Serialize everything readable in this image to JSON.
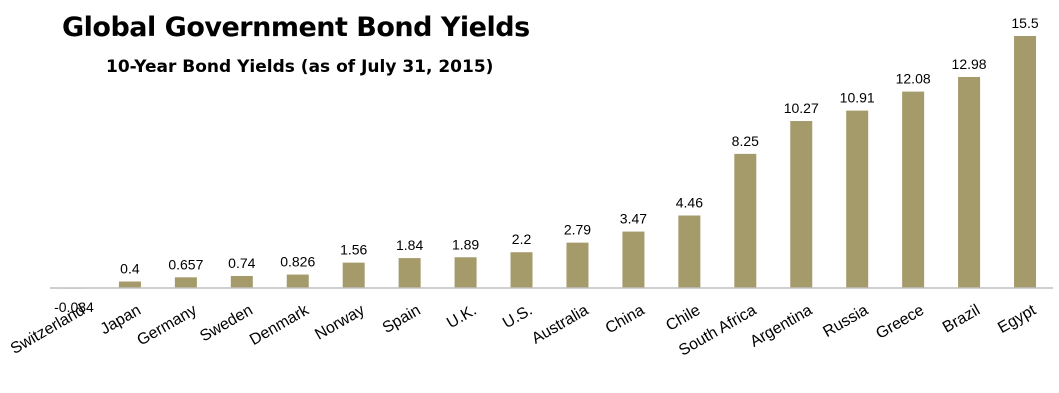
{
  "chart_data": {
    "type": "bar",
    "title": "Global Government Bond Yields",
    "subtitle": "10-Year Bond Yields (as of July 31, 2015)",
    "xlabel": "",
    "ylabel": "",
    "categories": [
      "Switzerland",
      "Japan",
      "Germany",
      "Sweden",
      "Denmark",
      "Norway",
      "Spain",
      "U.K.",
      "U.S.",
      "Australia",
      "China",
      "Chile",
      "South Africa",
      "Argentina",
      "Russia",
      "Greece",
      "Brazil",
      "Egypt"
    ],
    "values": [
      -0.034,
      0.4,
      0.657,
      0.74,
      0.826,
      1.56,
      1.84,
      1.89,
      2.2,
      2.79,
      3.47,
      4.46,
      8.25,
      10.27,
      10.91,
      12.08,
      12.98,
      15.5
    ],
    "value_labels": [
      "-0.034",
      "0.4",
      "0.657",
      "0.74",
      "0.826",
      "1.56",
      "1.84",
      "1.89",
      "2.2",
      "2.79",
      "3.47",
      "4.46",
      "8.25",
      "10.27",
      "10.91",
      "12.08",
      "12.98",
      "15.5"
    ],
    "ylim": [
      -0.034,
      15.5
    ],
    "grid": false,
    "legend": "none",
    "bar_color": "#a59a6a",
    "axis_color": "#bfbfbf"
  }
}
